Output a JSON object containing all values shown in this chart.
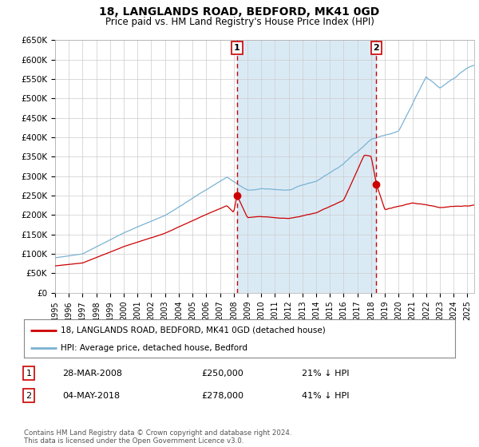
{
  "title": "18, LANGLANDS ROAD, BEDFORD, MK41 0GD",
  "subtitle": "Price paid vs. HM Land Registry's House Price Index (HPI)",
  "ylim": [
    0,
    650000
  ],
  "yticks": [
    0,
    50000,
    100000,
    150000,
    200000,
    250000,
    300000,
    350000,
    400000,
    450000,
    500000,
    550000,
    600000,
    650000
  ],
  "ytick_labels": [
    "£0",
    "£50K",
    "£100K",
    "£150K",
    "£200K",
    "£250K",
    "£300K",
    "£350K",
    "£400K",
    "£450K",
    "£500K",
    "£550K",
    "£600K",
    "£650K"
  ],
  "xlim_start": 1995.0,
  "xlim_end": 2025.5,
  "hpi_color": "#7ab3d4",
  "hpi_fill_color": "#daeaf5",
  "price_color": "#cc0000",
  "vline_color": "#cc0000",
  "transaction1_x": 2008.24,
  "transaction2_x": 2018.37,
  "transaction1_price": 250000,
  "transaction2_price": 278000,
  "legend_label1": "18, LANGLANDS ROAD, BEDFORD, MK41 0GD (detached house)",
  "legend_label2": "HPI: Average price, detached house, Bedford",
  "note1_num": "1",
  "note1_date": "28-MAR-2008",
  "note1_price": "£250,000",
  "note1_hpi": "21% ↓ HPI",
  "note2_num": "2",
  "note2_date": "04-MAY-2018",
  "note2_price": "£278,000",
  "note2_hpi": "41% ↓ HPI",
  "footer": "Contains HM Land Registry data © Crown copyright and database right 2024.\nThis data is licensed under the Open Government Licence v3.0.",
  "background_color": "#ffffff",
  "grid_color": "#cccccc"
}
